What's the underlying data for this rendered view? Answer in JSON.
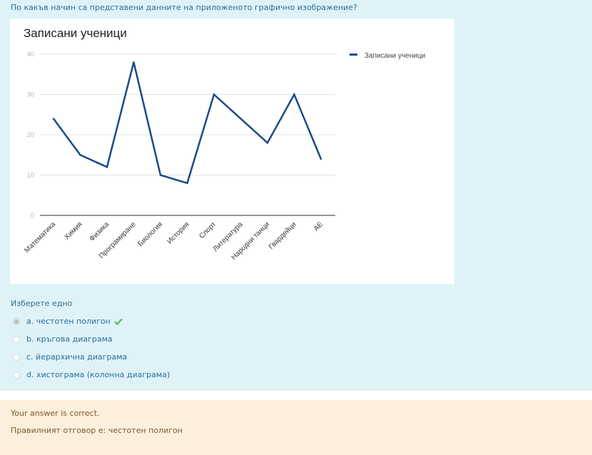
{
  "question": {
    "text": "По какъв начин са представени данните на приложеното графично изображение?"
  },
  "chart_data": {
    "type": "line",
    "title": "Записани ученици",
    "categories": [
      "Математика",
      "Химия",
      "Физика",
      "Програмиране",
      "Биология",
      "История",
      "Спорт",
      "Литература",
      "Народни танци",
      "Гвардейци",
      "АЕ"
    ],
    "series": [
      {
        "name": "Записани ученици",
        "values": [
          24,
          15,
          12,
          38,
          10,
          8,
          30,
          24,
          18,
          30,
          14
        ]
      }
    ],
    "yticks": [
      "0",
      "10",
      "20",
      "30",
      "40"
    ],
    "ylim": [
      0,
      40
    ],
    "grid": true,
    "legend": "right",
    "colors": {
      "line": "#1c4a88",
      "grid": "#e3e3e3",
      "axis": "#555555",
      "tick_text": "#b5b5b5"
    }
  },
  "prompt": "Изберете едно",
  "answers": [
    {
      "label": "a. честотен полигон",
      "selected": true,
      "correct": true
    },
    {
      "label": "b. кръгова диаграма",
      "selected": false
    },
    {
      "label": "c. йерархична диаграма",
      "selected": false
    },
    {
      "label": "d. хистограма (колонна диаграма)",
      "selected": false
    }
  ],
  "feedback": {
    "status": "Your answer is correct.",
    "right_answer": "Правилният отговор е: честотен полигон"
  },
  "colors": {
    "question_bg": "#def2f8",
    "feedback_bg": "#fcefdc",
    "check": "#5cb85c"
  }
}
